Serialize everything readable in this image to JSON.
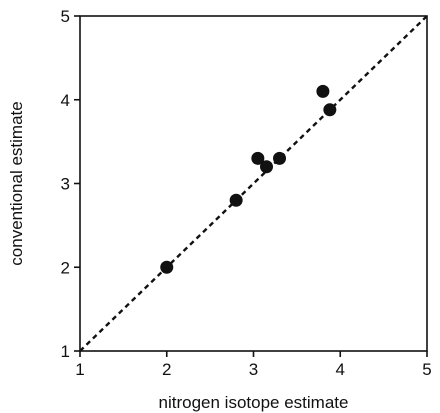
{
  "chart_data": {
    "type": "scatter",
    "title": "",
    "xlabel": "nitrogen isotope estimate",
    "ylabel": "conventional estimate",
    "xlim": [
      1,
      5
    ],
    "ylim": [
      1,
      5
    ],
    "xticks": [
      1,
      2,
      3,
      4,
      5
    ],
    "yticks": [
      1,
      2,
      3,
      4,
      5
    ],
    "grid": false,
    "reference_line": {
      "style": "dashed",
      "from": [
        1,
        1
      ],
      "to": [
        5,
        5
      ]
    },
    "points": [
      {
        "x": 2.0,
        "y": 2.0
      },
      {
        "x": 2.8,
        "y": 2.8
      },
      {
        "x": 3.05,
        "y": 3.3
      },
      {
        "x": 3.15,
        "y": 3.2
      },
      {
        "x": 3.3,
        "y": 3.3
      },
      {
        "x": 3.8,
        "y": 4.1
      },
      {
        "x": 3.88,
        "y": 3.88
      }
    ],
    "colors": {
      "marker": "#111111",
      "line": "#111111",
      "axes": "#111111"
    }
  }
}
